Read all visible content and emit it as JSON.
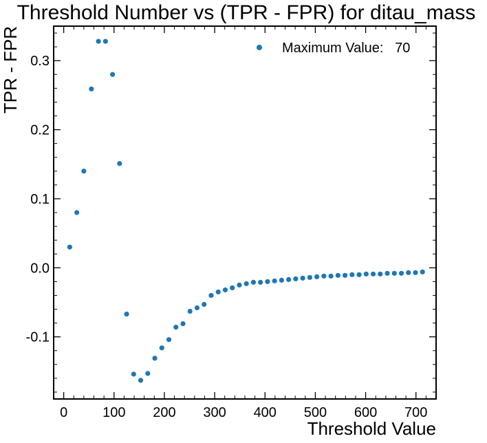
{
  "chart_data": {
    "type": "scatter",
    "title": "Threshold Number vs (TPR - FPR) for ditau_mass",
    "xlabel": "Threshold Value",
    "ylabel": "TPR - FPR",
    "xlim": [
      -20,
      740
    ],
    "ylim": [
      -0.19,
      0.35
    ],
    "x_ticks": [
      0,
      100,
      200,
      300,
      400,
      500,
      600,
      700
    ],
    "x_tick_labels": [
      "0",
      "100",
      "200",
      "300",
      "400",
      "500",
      "600",
      "700"
    ],
    "y_ticks": [
      -0.1,
      0.0,
      0.1,
      0.2,
      0.3
    ],
    "y_tick_labels": [
      "-0.1",
      "0.0",
      "0.1",
      "0.2",
      "0.3"
    ],
    "grid": false,
    "legend_position": "top-right",
    "series": [
      {
        "name": "Maximum Value:   70",
        "color": "#1f77b4",
        "x": [
          12,
          26,
          40,
          55,
          69,
          83,
          97,
          111,
          125,
          139,
          153,
          167,
          181,
          195,
          209,
          223,
          237,
          251,
          265,
          279,
          293,
          307,
          321,
          335,
          349,
          363,
          377,
          391,
          405,
          419,
          433,
          447,
          461,
          475,
          489,
          503,
          517,
          531,
          545,
          559,
          573,
          587,
          601,
          615,
          629,
          643,
          657,
          671,
          685,
          699,
          713
        ],
        "y": [
          0.03,
          0.08,
          0.14,
          0.259,
          0.328,
          0.328,
          0.28,
          0.151,
          -0.067,
          -0.154,
          -0.163,
          -0.153,
          -0.131,
          -0.116,
          -0.104,
          -0.086,
          -0.081,
          -0.063,
          -0.058,
          -0.053,
          -0.04,
          -0.035,
          -0.032,
          -0.029,
          -0.025,
          -0.023,
          -0.021,
          -0.021,
          -0.02,
          -0.019,
          -0.018,
          -0.017,
          -0.016,
          -0.015,
          -0.014,
          -0.013,
          -0.012,
          -0.012,
          -0.011,
          -0.011,
          -0.01,
          -0.01,
          -0.009,
          -0.009,
          -0.009,
          -0.008,
          -0.008,
          -0.008,
          -0.007,
          -0.007,
          -0.006
        ]
      }
    ]
  }
}
